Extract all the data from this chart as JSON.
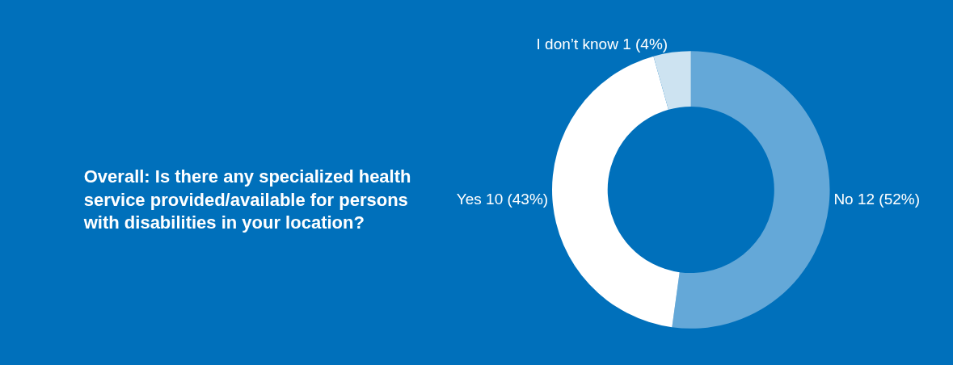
{
  "chart_data": {
    "type": "donut",
    "title": "Overall: Is there any specialized health service provided/available for persons with disabilities in your location?",
    "categories": [
      "No",
      "Yes",
      "I don’t know"
    ],
    "values": [
      12,
      10,
      1
    ],
    "value_labels": [
      "12 (52%)",
      "10 (43%)",
      "1 (4%)"
    ],
    "colors": [
      "#64a8d8",
      "#ffffff",
      "#cde3f1"
    ],
    "legend": false
  }
}
